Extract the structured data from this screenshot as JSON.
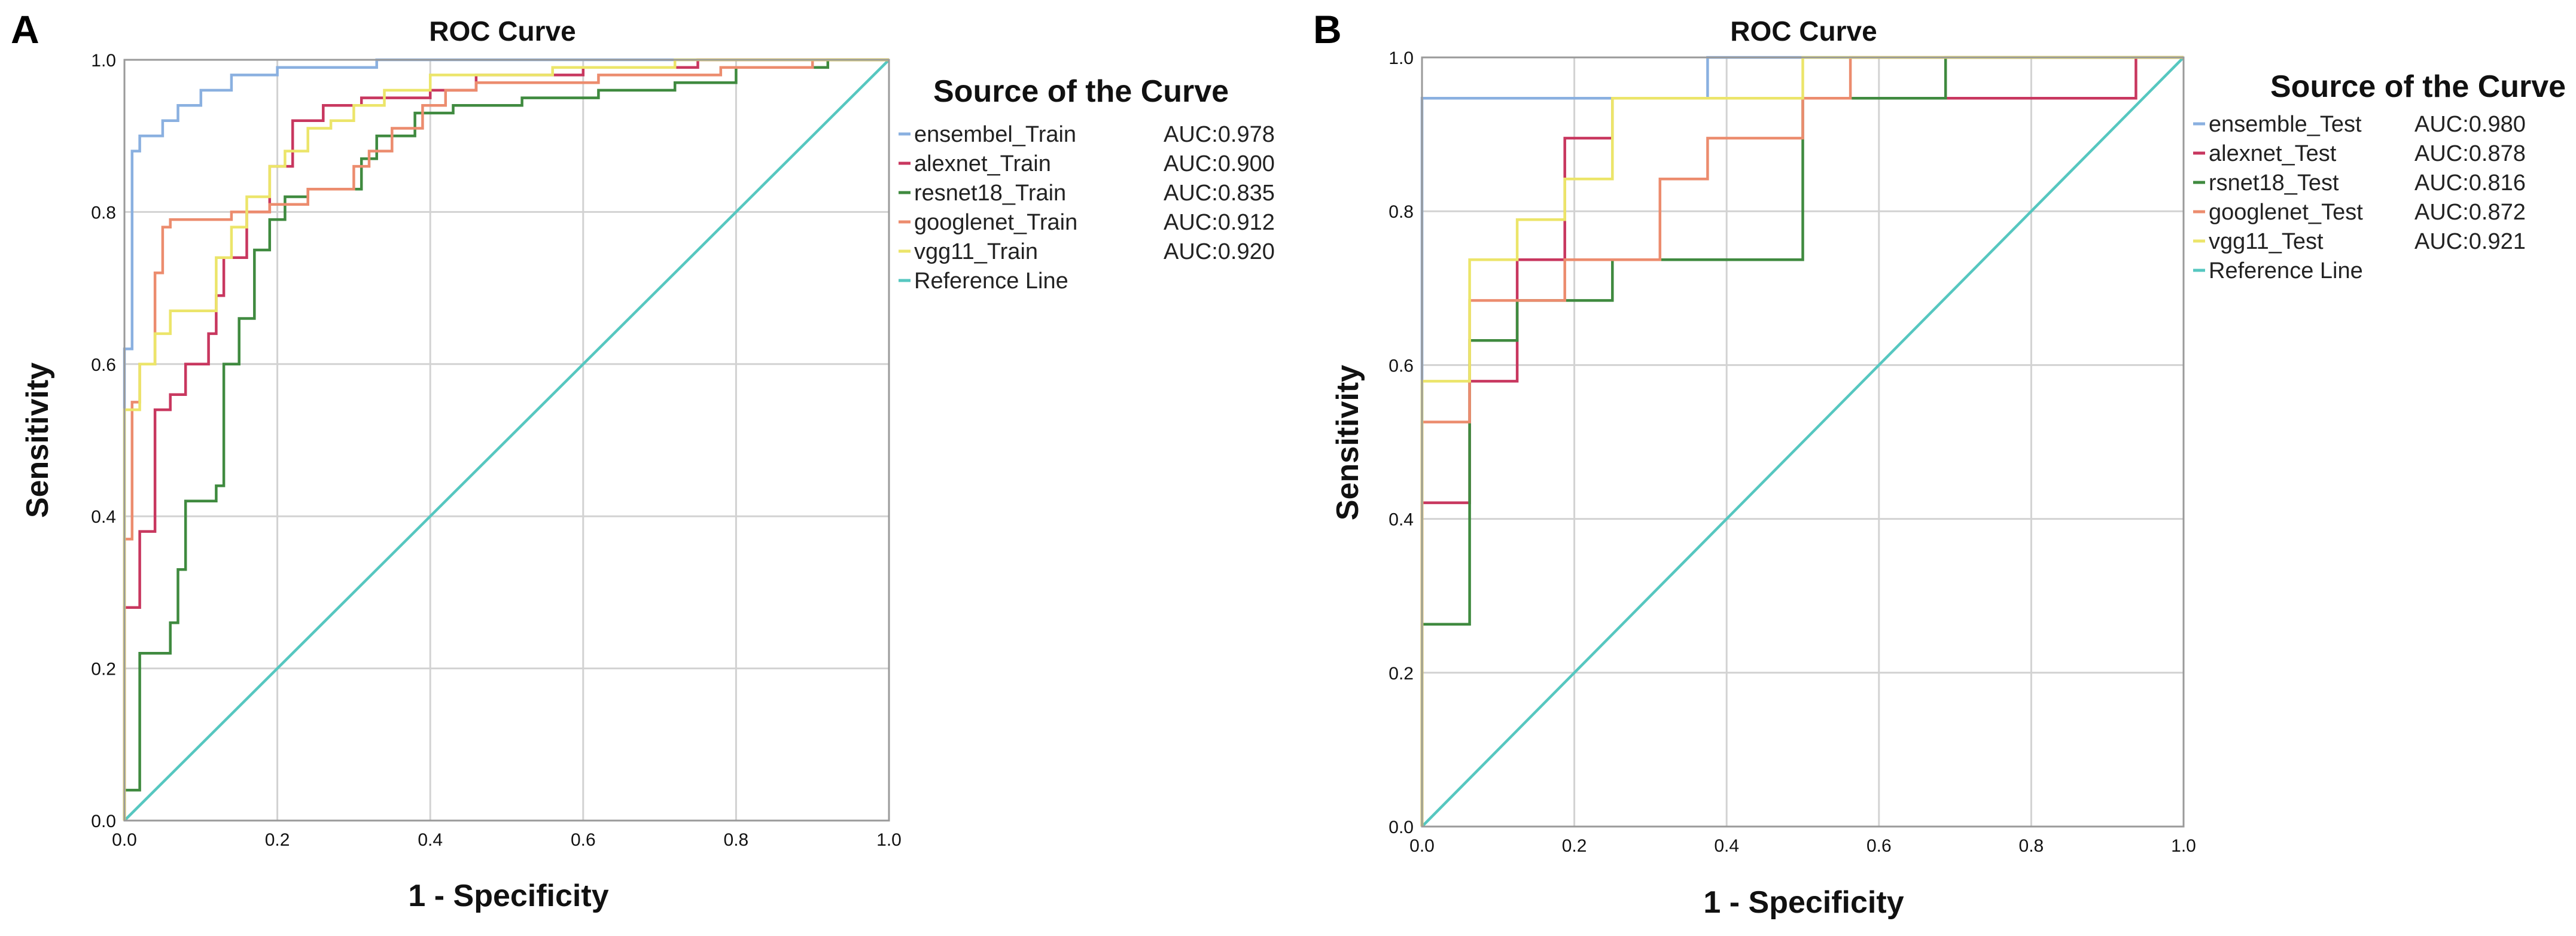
{
  "colors": {
    "ensemble": "#8ab0e0",
    "alexnet": "#c8375f",
    "resnet18": "#3f8a3f",
    "googlenet": "#ec8c6e",
    "vgg11": "#ece56a",
    "reference": "#56c7c0",
    "grid": "#d2d2d2"
  },
  "chart_data": [
    {
      "panel_label": "A",
      "type": "line",
      "title": "ROC Curve",
      "xlabel": "1 - Specificity",
      "ylabel": "Sensitivity",
      "xlim": [
        0,
        1
      ],
      "ylim": [
        0,
        1
      ],
      "grid": true,
      "xticks": [
        "0.0",
        "0.2",
        "0.4",
        "0.6",
        "0.8",
        "1.0"
      ],
      "yticks": [
        "0.0",
        "0.2",
        "0.4",
        "0.6",
        "0.8",
        "1.0"
      ],
      "legend_title": "Source of the Curve",
      "legend_position": "right",
      "series": [
        {
          "name": "ensembel_Train",
          "auc_label": "AUC:0.978",
          "color_key": "ensemble",
          "points": [
            [
              0,
              0
            ],
            [
              0,
              0.62
            ],
            [
              0.01,
              0.62
            ],
            [
              0.01,
              0.88
            ],
            [
              0.02,
              0.88
            ],
            [
              0.02,
              0.9
            ],
            [
              0.05,
              0.9
            ],
            [
              0.05,
              0.92
            ],
            [
              0.07,
              0.92
            ],
            [
              0.07,
              0.94
            ],
            [
              0.1,
              0.94
            ],
            [
              0.1,
              0.96
            ],
            [
              0.14,
              0.96
            ],
            [
              0.14,
              0.98
            ],
            [
              0.2,
              0.98
            ],
            [
              0.2,
              0.99
            ],
            [
              0.33,
              0.99
            ],
            [
              0.33,
              1.0
            ],
            [
              1,
              1
            ]
          ]
        },
        {
          "name": "alexnet_Train",
          "auc_label": "AUC:0.900",
          "color_key": "alexnet",
          "points": [
            [
              0,
              0
            ],
            [
              0,
              0.28
            ],
            [
              0.02,
              0.28
            ],
            [
              0.02,
              0.38
            ],
            [
              0.04,
              0.38
            ],
            [
              0.04,
              0.54
            ],
            [
              0.06,
              0.54
            ],
            [
              0.06,
              0.56
            ],
            [
              0.08,
              0.56
            ],
            [
              0.08,
              0.6
            ],
            [
              0.11,
              0.6
            ],
            [
              0.11,
              0.64
            ],
            [
              0.12,
              0.64
            ],
            [
              0.12,
              0.69
            ],
            [
              0.13,
              0.69
            ],
            [
              0.13,
              0.74
            ],
            [
              0.16,
              0.74
            ],
            [
              0.16,
              0.8
            ],
            [
              0.19,
              0.8
            ],
            [
              0.19,
              0.86
            ],
            [
              0.22,
              0.86
            ],
            [
              0.22,
              0.92
            ],
            [
              0.26,
              0.92
            ],
            [
              0.26,
              0.94
            ],
            [
              0.31,
              0.94
            ],
            [
              0.31,
              0.95
            ],
            [
              0.4,
              0.95
            ],
            [
              0.4,
              0.96
            ],
            [
              0.46,
              0.96
            ],
            [
              0.46,
              0.98
            ],
            [
              0.6,
              0.98
            ],
            [
              0.6,
              0.99
            ],
            [
              0.75,
              0.99
            ],
            [
              0.75,
              1.0
            ],
            [
              1,
              1
            ]
          ]
        },
        {
          "name": "resnet18_Train",
          "auc_label": "AUC:0.835",
          "color_key": "resnet18",
          "points": [
            [
              0,
              0
            ],
            [
              0,
              0.04
            ],
            [
              0.02,
              0.04
            ],
            [
              0.02,
              0.22
            ],
            [
              0.06,
              0.22
            ],
            [
              0.06,
              0.26
            ],
            [
              0.07,
              0.26
            ],
            [
              0.07,
              0.33
            ],
            [
              0.08,
              0.33
            ],
            [
              0.08,
              0.42
            ],
            [
              0.12,
              0.42
            ],
            [
              0.12,
              0.44
            ],
            [
              0.13,
              0.44
            ],
            [
              0.13,
              0.6
            ],
            [
              0.15,
              0.6
            ],
            [
              0.15,
              0.66
            ],
            [
              0.17,
              0.66
            ],
            [
              0.17,
              0.75
            ],
            [
              0.19,
              0.75
            ],
            [
              0.19,
              0.79
            ],
            [
              0.21,
              0.79
            ],
            [
              0.21,
              0.82
            ],
            [
              0.24,
              0.82
            ],
            [
              0.24,
              0.83
            ],
            [
              0.31,
              0.83
            ],
            [
              0.31,
              0.87
            ],
            [
              0.33,
              0.87
            ],
            [
              0.33,
              0.9
            ],
            [
              0.38,
              0.9
            ],
            [
              0.38,
              0.93
            ],
            [
              0.43,
              0.93
            ],
            [
              0.43,
              0.94
            ],
            [
              0.52,
              0.94
            ],
            [
              0.52,
              0.95
            ],
            [
              0.62,
              0.95
            ],
            [
              0.62,
              0.96
            ],
            [
              0.72,
              0.96
            ],
            [
              0.72,
              0.97
            ],
            [
              0.8,
              0.97
            ],
            [
              0.8,
              0.99
            ],
            [
              0.92,
              0.99
            ],
            [
              0.92,
              1.0
            ],
            [
              1,
              1
            ]
          ]
        },
        {
          "name": "googlenet_Train",
          "auc_label": "AUC:0.912",
          "color_key": "googlenet",
          "points": [
            [
              0,
              0
            ],
            [
              0,
              0.37
            ],
            [
              0.01,
              0.37
            ],
            [
              0.01,
              0.55
            ],
            [
              0.02,
              0.55
            ],
            [
              0.02,
              0.6
            ],
            [
              0.04,
              0.6
            ],
            [
              0.04,
              0.72
            ],
            [
              0.05,
              0.72
            ],
            [
              0.05,
              0.78
            ],
            [
              0.06,
              0.78
            ],
            [
              0.06,
              0.79
            ],
            [
              0.14,
              0.79
            ],
            [
              0.14,
              0.8
            ],
            [
              0.19,
              0.8
            ],
            [
              0.19,
              0.81
            ],
            [
              0.24,
              0.81
            ],
            [
              0.24,
              0.83
            ],
            [
              0.3,
              0.83
            ],
            [
              0.3,
              0.86
            ],
            [
              0.32,
              0.86
            ],
            [
              0.32,
              0.88
            ],
            [
              0.35,
              0.88
            ],
            [
              0.35,
              0.91
            ],
            [
              0.39,
              0.91
            ],
            [
              0.39,
              0.94
            ],
            [
              0.42,
              0.94
            ],
            [
              0.42,
              0.96
            ],
            [
              0.46,
              0.96
            ],
            [
              0.46,
              0.97
            ],
            [
              0.62,
              0.97
            ],
            [
              0.62,
              0.98
            ],
            [
              0.78,
              0.98
            ],
            [
              0.78,
              0.99
            ],
            [
              0.9,
              0.99
            ],
            [
              0.9,
              1.0
            ],
            [
              1,
              1
            ]
          ]
        },
        {
          "name": "vgg11_Train",
          "auc_label": "AUC:0.920",
          "color_key": "vgg11",
          "points": [
            [
              0,
              0
            ],
            [
              0,
              0.54
            ],
            [
              0.02,
              0.54
            ],
            [
              0.02,
              0.6
            ],
            [
              0.04,
              0.6
            ],
            [
              0.04,
              0.64
            ],
            [
              0.06,
              0.64
            ],
            [
              0.06,
              0.67
            ],
            [
              0.12,
              0.67
            ],
            [
              0.12,
              0.74
            ],
            [
              0.14,
              0.74
            ],
            [
              0.14,
              0.78
            ],
            [
              0.16,
              0.78
            ],
            [
              0.16,
              0.82
            ],
            [
              0.19,
              0.82
            ],
            [
              0.19,
              0.86
            ],
            [
              0.21,
              0.86
            ],
            [
              0.21,
              0.88
            ],
            [
              0.24,
              0.88
            ],
            [
              0.24,
              0.91
            ],
            [
              0.27,
              0.91
            ],
            [
              0.27,
              0.92
            ],
            [
              0.3,
              0.92
            ],
            [
              0.3,
              0.94
            ],
            [
              0.34,
              0.94
            ],
            [
              0.34,
              0.96
            ],
            [
              0.4,
              0.96
            ],
            [
              0.4,
              0.98
            ],
            [
              0.56,
              0.98
            ],
            [
              0.56,
              0.99
            ],
            [
              0.72,
              0.99
            ],
            [
              0.72,
              1.0
            ],
            [
              1,
              1
            ]
          ]
        },
        {
          "name": "Reference Line",
          "auc_label": "",
          "color_key": "reference",
          "points": [
            [
              0,
              0
            ],
            [
              1,
              1
            ]
          ]
        }
      ]
    },
    {
      "panel_label": "B",
      "type": "line",
      "title": "ROC Curve",
      "xlabel": "1 - Specificity",
      "ylabel": "Sensitivity",
      "xlim": [
        0,
        1
      ],
      "ylim": [
        0,
        1
      ],
      "grid": true,
      "xticks": [
        "0.0",
        "0.2",
        "0.4",
        "0.6",
        "0.8",
        "1.0"
      ],
      "yticks": [
        "0.0",
        "0.2",
        "0.4",
        "0.6",
        "0.8",
        "1.0"
      ],
      "legend_title": "Source of the Curve",
      "legend_position": "right",
      "series": [
        {
          "name": "ensemble_Test",
          "auc_label": "AUC:0.980",
          "color_key": "ensemble",
          "points": [
            [
              0,
              0
            ],
            [
              0,
              0.947
            ],
            [
              0.375,
              0.947
            ],
            [
              0.375,
              1.0
            ],
            [
              1,
              1
            ]
          ]
        },
        {
          "name": "alexnet_Test",
          "auc_label": "AUC:0.878",
          "color_key": "alexnet",
          "points": [
            [
              0,
              0
            ],
            [
              0,
              0.421
            ],
            [
              0.0625,
              0.421
            ],
            [
              0.0625,
              0.579
            ],
            [
              0.125,
              0.579
            ],
            [
              0.125,
              0.737
            ],
            [
              0.1875,
              0.737
            ],
            [
              0.1875,
              0.895
            ],
            [
              0.25,
              0.895
            ],
            [
              0.25,
              0.947
            ],
            [
              0.9375,
              0.947
            ],
            [
              0.9375,
              1.0
            ],
            [
              1,
              1
            ]
          ]
        },
        {
          "name": "rsnet18_Test",
          "auc_label": "AUC:0.816",
          "color_key": "resnet18",
          "points": [
            [
              0,
              0
            ],
            [
              0,
              0.263
            ],
            [
              0.0625,
              0.263
            ],
            [
              0.0625,
              0.632
            ],
            [
              0.125,
              0.632
            ],
            [
              0.125,
              0.684
            ],
            [
              0.25,
              0.684
            ],
            [
              0.25,
              0.737
            ],
            [
              0.5,
              0.737
            ],
            [
              0.5,
              0.947
            ],
            [
              0.6875,
              0.947
            ],
            [
              0.6875,
              1.0
            ],
            [
              1,
              1
            ]
          ]
        },
        {
          "name": "googlenet_Test",
          "auc_label": "AUC:0.872",
          "color_key": "googlenet",
          "points": [
            [
              0,
              0
            ],
            [
              0,
              0.526
            ],
            [
              0.0625,
              0.526
            ],
            [
              0.0625,
              0.684
            ],
            [
              0.1875,
              0.684
            ],
            [
              0.1875,
              0.737
            ],
            [
              0.3125,
              0.737
            ],
            [
              0.3125,
              0.842
            ],
            [
              0.375,
              0.842
            ],
            [
              0.375,
              0.895
            ],
            [
              0.5,
              0.895
            ],
            [
              0.5,
              0.947
            ],
            [
              0.5625,
              0.947
            ],
            [
              0.5625,
              1.0
            ],
            [
              1,
              1
            ]
          ]
        },
        {
          "name": "vgg11_Test",
          "auc_label": "AUC:0.921",
          "color_key": "vgg11",
          "points": [
            [
              0,
              0
            ],
            [
              0,
              0.579
            ],
            [
              0.0625,
              0.579
            ],
            [
              0.0625,
              0.737
            ],
            [
              0.125,
              0.737
            ],
            [
              0.125,
              0.789
            ],
            [
              0.1875,
              0.789
            ],
            [
              0.1875,
              0.842
            ],
            [
              0.25,
              0.842
            ],
            [
              0.25,
              0.947
            ],
            [
              0.5,
              0.947
            ],
            [
              0.5,
              1.0
            ],
            [
              1,
              1
            ]
          ]
        },
        {
          "name": "Reference Line",
          "auc_label": "",
          "color_key": "reference",
          "points": [
            [
              0,
              0
            ],
            [
              1,
              1
            ]
          ]
        }
      ]
    }
  ]
}
